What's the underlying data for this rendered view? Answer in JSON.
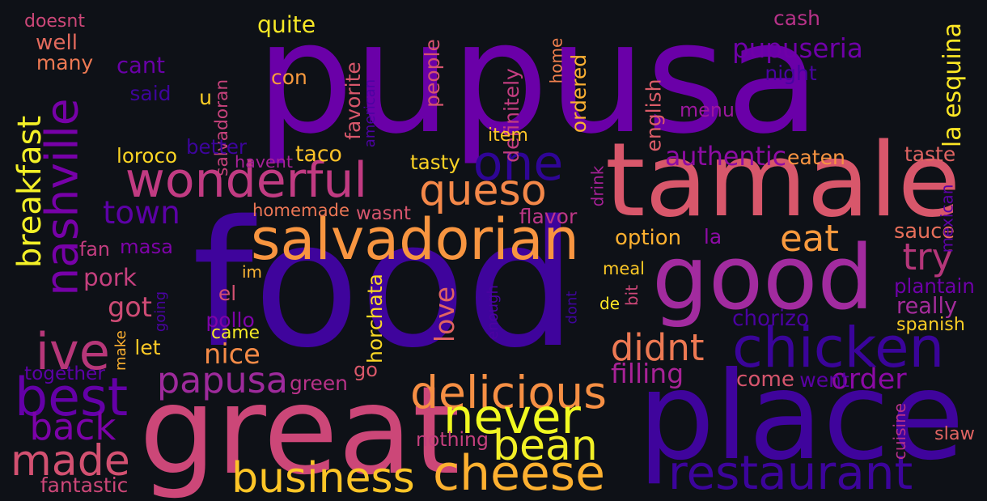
{
  "palette": {
    "background": "#0e1117"
  },
  "words": [
    {
      "text": "pupusa",
      "color": "#6a00a8"
    },
    {
      "text": "food",
      "color": "#3f049c"
    },
    {
      "text": "place",
      "color": "#3f049c"
    },
    {
      "text": "great",
      "color": "#cc4778"
    },
    {
      "text": "tamale",
      "color": "#d8576b"
    },
    {
      "text": "good",
      "color": "#a22b9f"
    },
    {
      "text": "chicken",
      "color": "#3a049a"
    },
    {
      "text": "salvadorian",
      "color": "#f89540"
    },
    {
      "text": "restaurant",
      "color": "#3c049b"
    },
    {
      "text": "cheese",
      "color": "#fcb030"
    },
    {
      "text": "business",
      "color": "#fdc527"
    },
    {
      "text": "wonderful",
      "color": "#c13b82"
    },
    {
      "text": "nashville",
      "color": "#7701a8"
    },
    {
      "text": "delicious",
      "color": "#f68f44"
    },
    {
      "text": "never",
      "color": "#f0f921"
    },
    {
      "text": "bean",
      "color": "#f2f027"
    },
    {
      "text": "best",
      "color": "#6400a7"
    },
    {
      "text": "made",
      "color": "#d35171"
    },
    {
      "text": "queso",
      "color": "#f48849"
    },
    {
      "text": "one",
      "color": "#2f0596"
    },
    {
      "text": "ive",
      "color": "#b73779"
    },
    {
      "text": "papusa",
      "color": "#9e2a9c"
    },
    {
      "text": "english",
      "color": "#db5c68"
    },
    {
      "text": "breakfast",
      "color": "#f3f027"
    },
    {
      "text": "back",
      "color": "#7c02a8"
    },
    {
      "text": "got",
      "color": "#ce4b75"
    },
    {
      "text": "didnt",
      "color": "#ed7953"
    },
    {
      "text": "try",
      "color": "#b5367a"
    },
    {
      "text": "eat",
      "color": "#f99a3e"
    },
    {
      "text": "town",
      "color": "#5c01a6"
    },
    {
      "text": "la esquina",
      "color": "#fde725"
    },
    {
      "text": "pupuseria",
      "color": "#6f00a8"
    },
    {
      "text": "menu",
      "color": "#9c179e"
    },
    {
      "text": "authentic",
      "color": "#8e0ca4"
    },
    {
      "text": "love",
      "color": "#e16462"
    },
    {
      "text": "nice",
      "color": "#f58b47"
    },
    {
      "text": "spanish",
      "color": "#fcce25"
    },
    {
      "text": "really",
      "color": "#a52c9b"
    },
    {
      "text": "order",
      "color": "#8b0aa5"
    },
    {
      "text": "come",
      "color": "#d6556d"
    },
    {
      "text": "chorizo",
      "color": "#4a02a0"
    },
    {
      "text": "masa",
      "color": "#7e03a8"
    },
    {
      "text": "pork",
      "color": "#c5407e"
    },
    {
      "text": "green",
      "color": "#b83289"
    },
    {
      "text": "filling",
      "color": "#a82296"
    },
    {
      "text": "sauce",
      "color": "#e76f5a"
    },
    {
      "text": "taco",
      "color": "#fdc328"
    },
    {
      "text": "eaten",
      "color": "#f89441"
    },
    {
      "text": "ordered",
      "color": "#fbb032"
    },
    {
      "text": "people",
      "color": "#d5546e"
    },
    {
      "text": "definitely",
      "color": "#c33d80"
    },
    {
      "text": "favorite",
      "color": "#d8576b"
    },
    {
      "text": "homemade",
      "color": "#eb7655"
    },
    {
      "text": "loroco",
      "color": "#fbd524"
    },
    {
      "text": "tasty",
      "color": "#fbd124"
    },
    {
      "text": "option",
      "color": "#fcb030"
    },
    {
      "text": "meal",
      "color": "#fdc926"
    },
    {
      "text": "go",
      "color": "#d9586a"
    },
    {
      "text": "horchata",
      "color": "#fad824"
    },
    {
      "text": "con",
      "color": "#f99a3e"
    },
    {
      "text": "cant",
      "color": "#6a00a8"
    },
    {
      "text": "quite",
      "color": "#f6e726"
    },
    {
      "text": "salvadoran",
      "color": "#c7427c"
    },
    {
      "text": "well",
      "color": "#e36a5d"
    },
    {
      "text": "doesnt",
      "color": "#cc4778"
    },
    {
      "text": "many",
      "color": "#ed7953"
    },
    {
      "text": "said",
      "color": "#3e049c"
    },
    {
      "text": "u",
      "color": "#fcce25"
    },
    {
      "text": "item",
      "color": "#fdc527"
    },
    {
      "text": "cash",
      "color": "#b83289"
    },
    {
      "text": "home",
      "color": "#f0804e"
    },
    {
      "text": "night",
      "color": "#4903a0"
    },
    {
      "text": "taste",
      "color": "#e16462"
    },
    {
      "text": "better",
      "color": "#3c049b"
    },
    {
      "text": "havent",
      "color": "#a72197"
    },
    {
      "text": "wasnt",
      "color": "#d6556d"
    },
    {
      "text": "flavor",
      "color": "#bd3786"
    },
    {
      "text": "american",
      "color": "#4c02a1"
    },
    {
      "text": "drink",
      "color": "#a72197"
    },
    {
      "text": "la",
      "color": "#8d0ba5"
    },
    {
      "text": "fan",
      "color": "#c33d80"
    },
    {
      "text": "im",
      "color": "#fbb535"
    },
    {
      "text": "el",
      "color": "#d35171"
    },
    {
      "text": "came",
      "color": "#f3e926"
    },
    {
      "text": "going",
      "color": "#4903a0"
    },
    {
      "text": "make",
      "color": "#fcb030"
    },
    {
      "text": "let",
      "color": "#fdc926"
    },
    {
      "text": "pollo",
      "color": "#7e03a8"
    },
    {
      "text": "enough",
      "color": "#4c02a1"
    },
    {
      "text": "dont",
      "color": "#3f049c"
    },
    {
      "text": "bit",
      "color": "#cc4778"
    },
    {
      "text": "de",
      "color": "#fde725"
    },
    {
      "text": "plantain",
      "color": "#6e00a8"
    },
    {
      "text": "went",
      "color": "#5a01a5"
    },
    {
      "text": "cuisine",
      "color": "#b83289"
    },
    {
      "text": "mexican",
      "color": "#5c01a6"
    },
    {
      "text": "slaw",
      "color": "#e16462"
    },
    {
      "text": "together",
      "color": "#5c01a6"
    },
    {
      "text": "fantastic",
      "color": "#cc4778"
    },
    {
      "text": "nothing",
      "color": "#c5407e"
    }
  ]
}
